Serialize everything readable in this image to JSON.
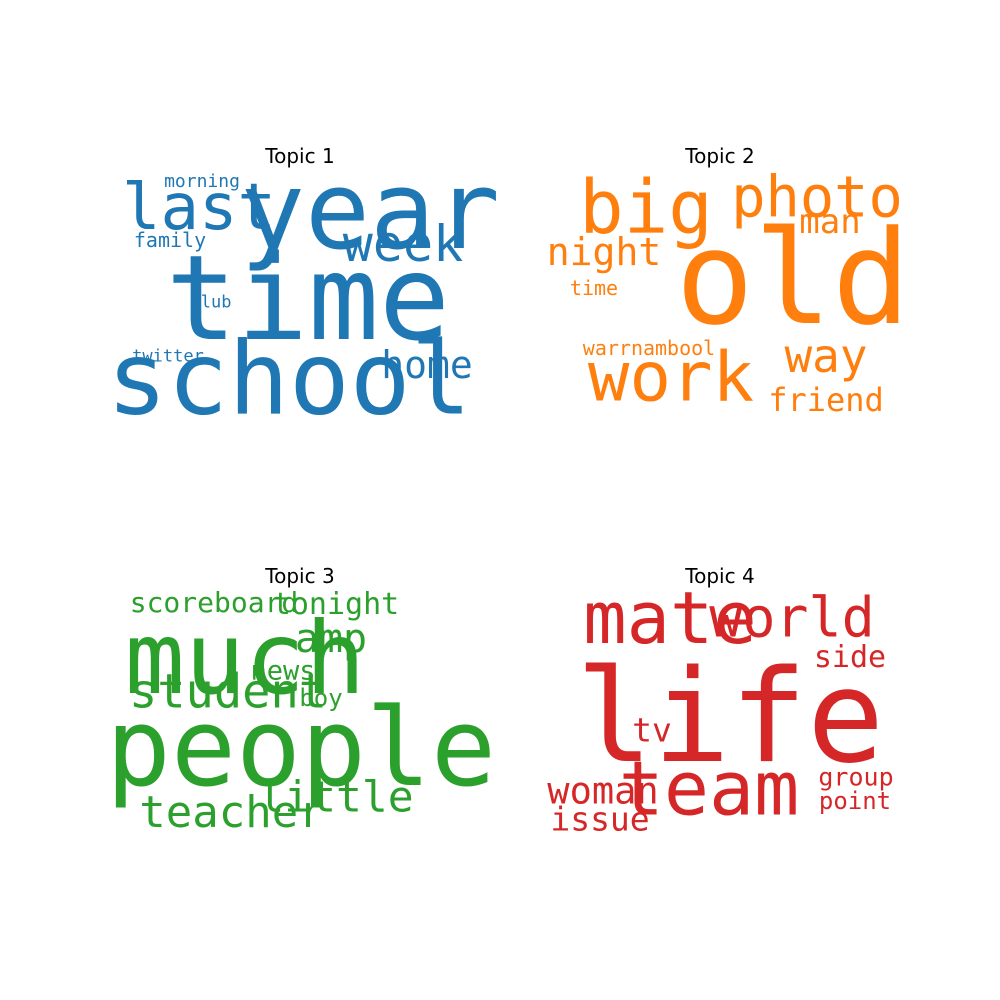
{
  "chart_data": [
    {
      "type": "wordcloud",
      "title": "Topic 1",
      "color": "#1f77b4",
      "words": [
        {
          "text": "time",
          "weight": 1.0
        },
        {
          "text": "year",
          "weight": 0.72
        },
        {
          "text": "school",
          "weight": 0.55
        },
        {
          "text": "last",
          "weight": 0.5
        },
        {
          "text": "week",
          "weight": 0.45
        },
        {
          "text": "home",
          "weight": 0.34
        },
        {
          "text": "morning",
          "weight": 0.18
        },
        {
          "text": "family",
          "weight": 0.19
        },
        {
          "text": "club",
          "weight": 0.16
        },
        {
          "text": "twitter",
          "weight": 0.16
        }
      ]
    },
    {
      "type": "wordcloud",
      "title": "Topic 2",
      "color": "#ff7f0e",
      "words": [
        {
          "text": "old",
          "weight": 1.0
        },
        {
          "text": "big",
          "weight": 0.62
        },
        {
          "text": "work",
          "weight": 0.6
        },
        {
          "text": "photo",
          "weight": 0.5
        },
        {
          "text": "way",
          "weight": 0.4
        },
        {
          "text": "night",
          "weight": 0.33
        },
        {
          "text": "man",
          "weight": 0.3
        },
        {
          "text": "friend",
          "weight": 0.28
        },
        {
          "text": "warrnambool",
          "weight": 0.19
        },
        {
          "text": "time",
          "weight": 0.18
        }
      ]
    },
    {
      "type": "wordcloud",
      "title": "Topic 3",
      "color": "#2ca02c",
      "words": [
        {
          "text": "people",
          "weight": 1.0
        },
        {
          "text": "much",
          "weight": 0.9
        },
        {
          "text": "student",
          "weight": 0.48
        },
        {
          "text": "teacher",
          "weight": 0.47
        },
        {
          "text": "little",
          "weight": 0.42
        },
        {
          "text": "amp",
          "weight": 0.4
        },
        {
          "text": "tonight",
          "weight": 0.3
        },
        {
          "text": "scoreboard",
          "weight": 0.28
        },
        {
          "text": "news",
          "weight": 0.26
        },
        {
          "text": "boy",
          "weight": 0.23
        }
      ]
    },
    {
      "type": "wordcloud",
      "title": "Topic 4",
      "color": "#d62728",
      "words": [
        {
          "text": "life",
          "weight": 1.0
        },
        {
          "text": "team",
          "weight": 0.62
        },
        {
          "text": "mate",
          "weight": 0.6
        },
        {
          "text": "world",
          "weight": 0.47
        },
        {
          "text": "woman",
          "weight": 0.3
        },
        {
          "text": "issue",
          "weight": 0.29
        },
        {
          "text": "tv",
          "weight": 0.3
        },
        {
          "text": "side",
          "weight": 0.26
        },
        {
          "text": "group",
          "weight": 0.22
        },
        {
          "text": "point",
          "weight": 0.2
        }
      ]
    }
  ]
}
